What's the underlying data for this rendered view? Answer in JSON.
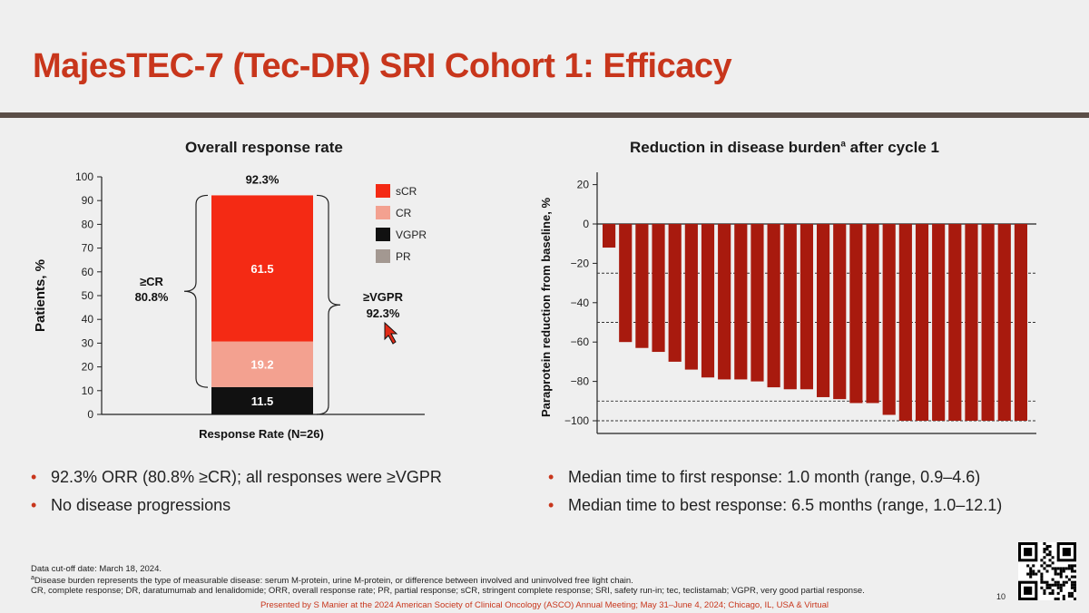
{
  "title": "MajesTEC-7 (Tec-DR) SRI Cohort 1: Efficacy",
  "chart_data": [
    {
      "type": "bar",
      "stacked": true,
      "title": "Overall response rate",
      "xlabel": "Response Rate (N=26)",
      "ylabel": "Patients, %",
      "ylim": [
        0,
        100
      ],
      "yticks": [
        "0",
        "10",
        "20",
        "30",
        "40",
        "50",
        "60",
        "70",
        "80",
        "90",
        "100"
      ],
      "categories": [
        "Response Rate (N=26)"
      ],
      "segments": [
        {
          "name": "VGPR",
          "value": 11.5,
          "label": "11.5",
          "color": "#111111"
        },
        {
          "name": "CR",
          "value": 19.2,
          "label": "19.2",
          "color": "#f3a190"
        },
        {
          "name": "sCR",
          "value": 61.5,
          "label": "61.5",
          "color": "#f42a14"
        }
      ],
      "total_label": "92.3%",
      "legend": [
        {
          "name": "sCR",
          "color": "#f42a14"
        },
        {
          "name": "CR",
          "color": "#f3a190"
        },
        {
          "name": "VGPR",
          "color": "#111111"
        },
        {
          "name": "PR",
          "color": "#a39891"
        }
      ],
      "bracket_left": {
        "label": "≥CR",
        "value": "80.8%"
      },
      "bracket_right": {
        "label": "≥VGPR",
        "value": "92.3%"
      }
    },
    {
      "type": "bar",
      "title": "Reduction in disease burden",
      "title_sup": "a",
      "title_suffix": " after cycle 1",
      "ylabel": "Paraprotein reduction from baseline, %",
      "ylim": [
        -105,
        20
      ],
      "yticks": [
        "20",
        "0",
        "−20",
        "−40",
        "−60",
        "−80",
        "−100"
      ],
      "reference_lines": [
        -25,
        -50,
        -90,
        -100
      ],
      "bar_color": "#a81a0e",
      "values": [
        -12,
        -60,
        -63,
        -65,
        -70,
        -74,
        -78,
        -79,
        -79,
        -80,
        -83,
        -84,
        -84,
        -88,
        -89,
        -91,
        -91,
        -97,
        -100,
        -100,
        -100,
        -100,
        -100,
        -100,
        -100,
        -100
      ]
    }
  ],
  "bullets_left": [
    "92.3% ORR (80.8% ≥CR); all responses were ≥VGPR",
    "No disease progressions"
  ],
  "bullets_right": [
    "Median time to first response: 1.0 month (range, 0.9–4.6)",
    "Median time to best response: 6.5 months (range, 1.0–12.1)"
  ],
  "footnotes": {
    "cutoff": "Data cut-off date: March 18, 2024.",
    "a_mark": "a",
    "a_text": "Disease burden represents the type of measurable disease: serum M-protein, urine M-protein, or difference between involved and uninvolved free light chain.",
    "abbrev": "CR, complete response; DR, daratumumab and lenalidomide; ORR, overall response rate; PR, partial response; sCR, stringent complete response; SRI, safety run-in; tec, teclistamab; VGPR, very good partial response."
  },
  "presented": "Presented by S Manier at the 2024 American Society of Clinical Oncology (ASCO) Annual Meeting; May 31–June 4, 2024; Chicago, IL, USA & Virtual",
  "page_number": "10"
}
